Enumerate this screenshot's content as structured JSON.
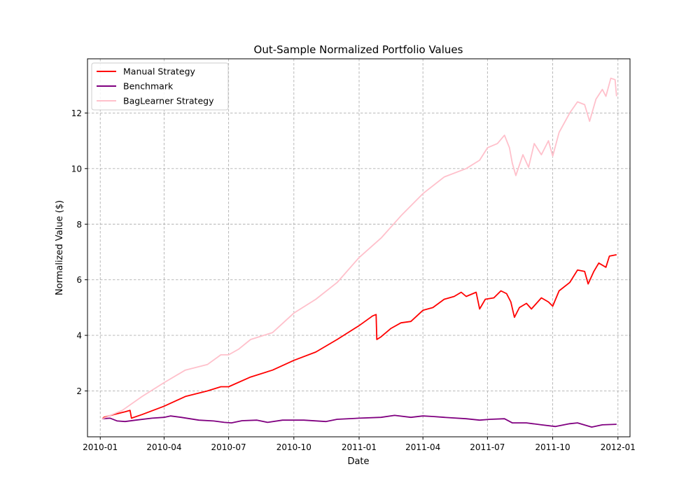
{
  "chart_data": {
    "type": "line",
    "title": "Out-Sample Normalized Portfolio Values",
    "xlabel": "Date",
    "ylabel": "Normalized Value ($)",
    "x_ticks": [
      "2010-01",
      "2010-04",
      "2010-07",
      "2010-10",
      "2011-01",
      "2011-04",
      "2011-07",
      "2011-10",
      "2012-01"
    ],
    "y_ticks": [
      2,
      4,
      6,
      8,
      10,
      12
    ],
    "xlim": [
      "2009-12-14",
      "2012-01-18"
    ],
    "ylim": [
      0.35,
      13.95
    ],
    "grid": true,
    "legend_position": "top-left",
    "series": [
      {
        "name": "Manual Strategy",
        "color": "#ff0000",
        "points": [
          [
            "2010-01-04",
            1.0
          ],
          [
            "2010-01-06",
            1.05
          ],
          [
            "2010-01-20",
            1.15
          ],
          [
            "2010-02-05",
            1.25
          ],
          [
            "2010-02-12",
            1.3
          ],
          [
            "2010-02-14",
            1.02
          ],
          [
            "2010-03-01",
            1.15
          ],
          [
            "2010-04-01",
            1.45
          ],
          [
            "2010-05-01",
            1.8
          ],
          [
            "2010-06-01",
            2.0
          ],
          [
            "2010-06-20",
            2.15
          ],
          [
            "2010-07-01",
            2.15
          ],
          [
            "2010-08-01",
            2.5
          ],
          [
            "2010-09-01",
            2.75
          ],
          [
            "2010-10-01",
            3.1
          ],
          [
            "2010-11-01",
            3.4
          ],
          [
            "2010-12-01",
            3.85
          ],
          [
            "2011-01-01",
            4.35
          ],
          [
            "2011-01-20",
            4.7
          ],
          [
            "2011-01-25",
            4.75
          ],
          [
            "2011-01-26",
            3.85
          ],
          [
            "2011-02-01",
            3.95
          ],
          [
            "2011-02-15",
            4.25
          ],
          [
            "2011-03-01",
            4.45
          ],
          [
            "2011-03-15",
            4.5
          ],
          [
            "2011-04-01",
            4.9
          ],
          [
            "2011-04-15",
            5.0
          ],
          [
            "2011-05-01",
            5.3
          ],
          [
            "2011-05-15",
            5.4
          ],
          [
            "2011-05-25",
            5.55
          ],
          [
            "2011-06-01",
            5.4
          ],
          [
            "2011-06-15",
            5.55
          ],
          [
            "2011-06-20",
            4.95
          ],
          [
            "2011-06-28",
            5.3
          ],
          [
            "2011-07-10",
            5.35
          ],
          [
            "2011-07-20",
            5.6
          ],
          [
            "2011-07-28",
            5.5
          ],
          [
            "2011-08-03",
            5.2
          ],
          [
            "2011-08-08",
            4.65
          ],
          [
            "2011-08-15",
            5.0
          ],
          [
            "2011-08-25",
            5.15
          ],
          [
            "2011-09-01",
            4.95
          ],
          [
            "2011-09-15",
            5.35
          ],
          [
            "2011-09-25",
            5.2
          ],
          [
            "2011-10-01",
            5.05
          ],
          [
            "2011-10-10",
            5.6
          ],
          [
            "2011-10-25",
            5.9
          ],
          [
            "2011-11-05",
            6.35
          ],
          [
            "2011-11-15",
            6.3
          ],
          [
            "2011-11-20",
            5.85
          ],
          [
            "2011-11-28",
            6.3
          ],
          [
            "2011-12-05",
            6.6
          ],
          [
            "2011-12-15",
            6.45
          ],
          [
            "2011-12-20",
            6.85
          ],
          [
            "2011-12-30",
            6.9
          ]
        ]
      },
      {
        "name": "Benchmark",
        "color": "#800080",
        "points": [
          [
            "2010-01-04",
            1.0
          ],
          [
            "2010-01-15",
            1.02
          ],
          [
            "2010-01-25",
            0.92
          ],
          [
            "2010-02-05",
            0.9
          ],
          [
            "2010-02-20",
            0.95
          ],
          [
            "2010-03-15",
            1.02
          ],
          [
            "2010-04-01",
            1.05
          ],
          [
            "2010-04-10",
            1.1
          ],
          [
            "2010-04-25",
            1.05
          ],
          [
            "2010-05-20",
            0.95
          ],
          [
            "2010-06-10",
            0.92
          ],
          [
            "2010-06-25",
            0.87
          ],
          [
            "2010-07-05",
            0.85
          ],
          [
            "2010-07-20",
            0.93
          ],
          [
            "2010-08-10",
            0.95
          ],
          [
            "2010-08-25",
            0.87
          ],
          [
            "2010-09-15",
            0.95
          ],
          [
            "2010-10-15",
            0.95
          ],
          [
            "2010-11-15",
            0.9
          ],
          [
            "2010-12-01",
            0.98
          ],
          [
            "2011-01-01",
            1.02
          ],
          [
            "2011-02-01",
            1.05
          ],
          [
            "2011-02-20",
            1.12
          ],
          [
            "2011-03-15",
            1.05
          ],
          [
            "2011-04-01",
            1.1
          ],
          [
            "2011-04-15",
            1.08
          ],
          [
            "2011-05-01",
            1.05
          ],
          [
            "2011-06-01",
            1.0
          ],
          [
            "2011-06-20",
            0.95
          ],
          [
            "2011-07-05",
            0.98
          ],
          [
            "2011-07-25",
            1.0
          ],
          [
            "2011-08-05",
            0.85
          ],
          [
            "2011-08-25",
            0.85
          ],
          [
            "2011-09-15",
            0.78
          ],
          [
            "2011-10-05",
            0.72
          ],
          [
            "2011-10-25",
            0.82
          ],
          [
            "2011-11-05",
            0.85
          ],
          [
            "2011-11-25",
            0.7
          ],
          [
            "2011-12-10",
            0.78
          ],
          [
            "2011-12-30",
            0.8
          ]
        ]
      },
      {
        "name": "BagLearner Strategy",
        "color": "#ffc0cb",
        "points": [
          [
            "2010-01-04",
            1.0
          ],
          [
            "2010-02-01",
            1.3
          ],
          [
            "2010-03-01",
            1.8
          ],
          [
            "2010-04-01",
            2.3
          ],
          [
            "2010-05-01",
            2.75
          ],
          [
            "2010-06-01",
            2.95
          ],
          [
            "2010-06-20",
            3.3
          ],
          [
            "2010-07-01",
            3.3
          ],
          [
            "2010-07-15",
            3.5
          ],
          [
            "2010-08-01",
            3.85
          ],
          [
            "2010-09-01",
            4.1
          ],
          [
            "2010-10-01",
            4.8
          ],
          [
            "2010-11-01",
            5.3
          ],
          [
            "2010-12-01",
            5.9
          ],
          [
            "2011-01-01",
            6.8
          ],
          [
            "2011-02-01",
            7.5
          ],
          [
            "2011-03-01",
            8.3
          ],
          [
            "2011-04-01",
            9.1
          ],
          [
            "2011-05-01",
            9.7
          ],
          [
            "2011-06-01",
            10.0
          ],
          [
            "2011-06-20",
            10.3
          ],
          [
            "2011-07-01",
            10.75
          ],
          [
            "2011-07-15",
            10.9
          ],
          [
            "2011-07-25",
            11.2
          ],
          [
            "2011-08-01",
            10.75
          ],
          [
            "2011-08-05",
            10.2
          ],
          [
            "2011-08-10",
            9.75
          ],
          [
            "2011-08-20",
            10.5
          ],
          [
            "2011-08-28",
            10.05
          ],
          [
            "2011-09-05",
            10.9
          ],
          [
            "2011-09-15",
            10.5
          ],
          [
            "2011-09-25",
            11.0
          ],
          [
            "2011-10-01",
            10.45
          ],
          [
            "2011-10-10",
            11.3
          ],
          [
            "2011-10-25",
            12.0
          ],
          [
            "2011-11-05",
            12.4
          ],
          [
            "2011-11-15",
            12.3
          ],
          [
            "2011-11-22",
            11.7
          ],
          [
            "2011-12-01",
            12.5
          ],
          [
            "2011-12-10",
            12.85
          ],
          [
            "2011-12-15",
            12.6
          ],
          [
            "2011-12-22",
            13.25
          ],
          [
            "2011-12-28",
            13.2
          ],
          [
            "2011-12-30",
            12.6
          ]
        ]
      }
    ]
  }
}
